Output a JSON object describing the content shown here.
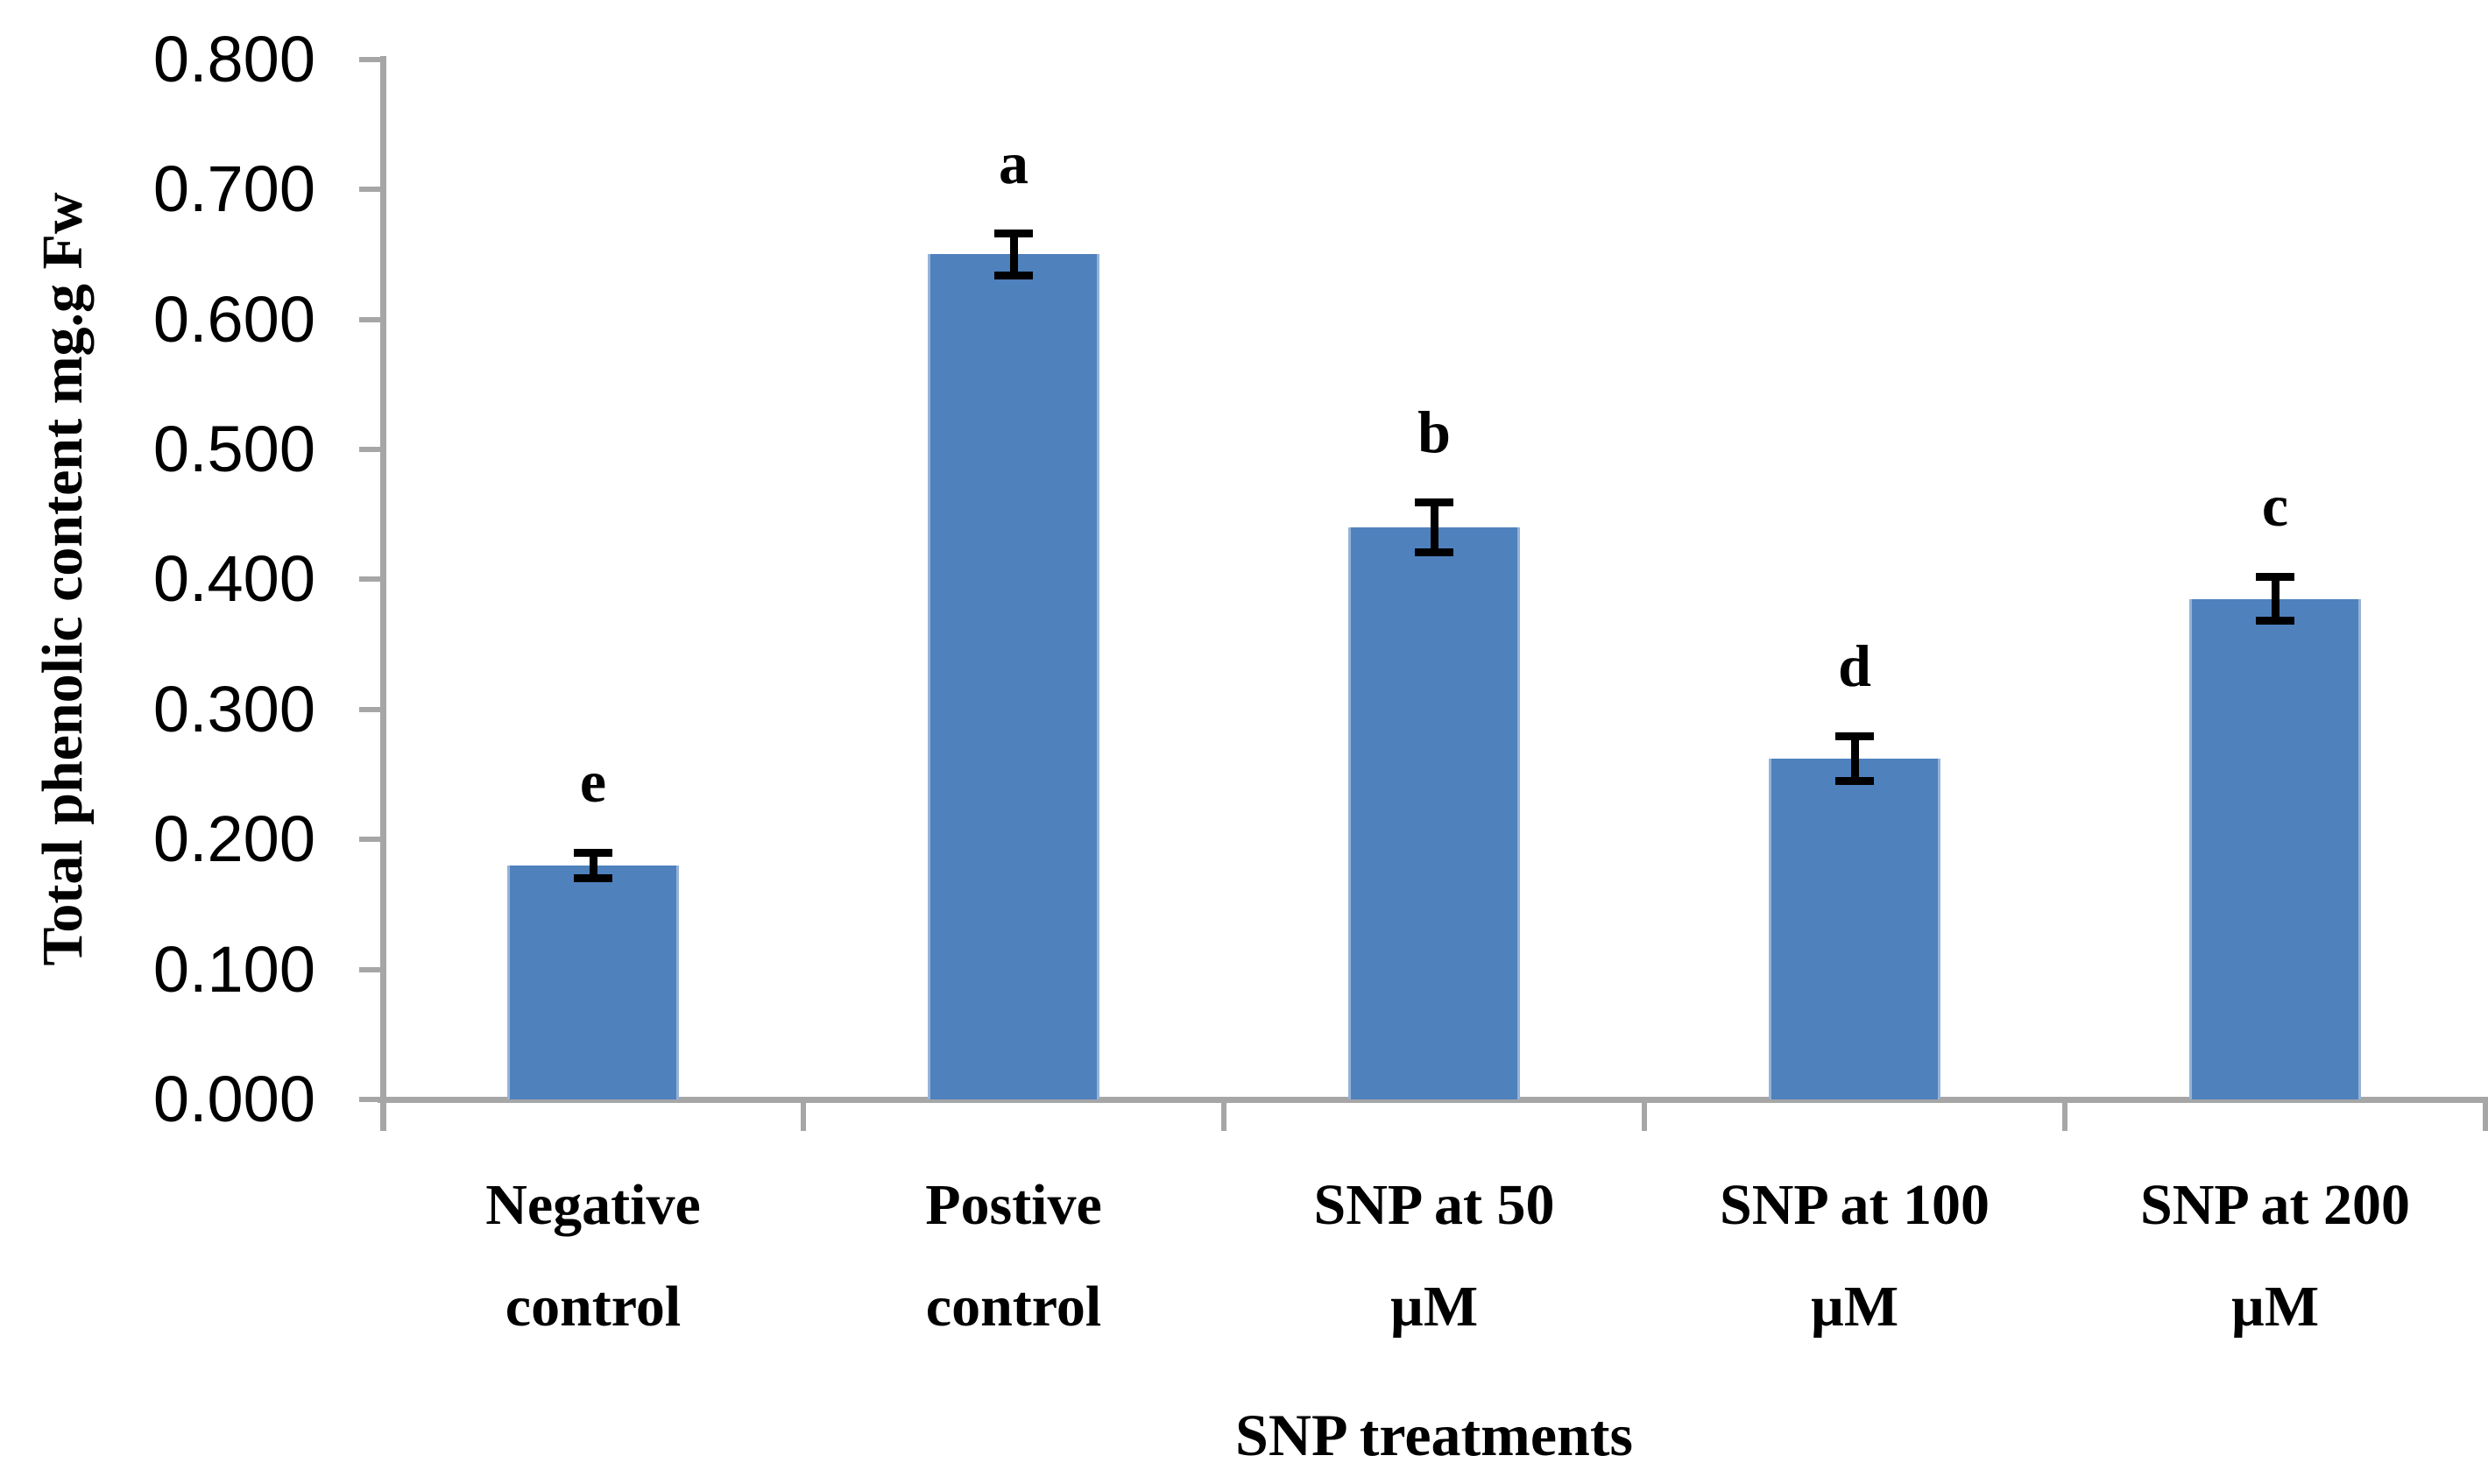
{
  "chart_data": {
    "type": "bar",
    "title": "",
    "xlabel": "SNP treatments",
    "ylabel": "Total phenolic content mg.g Fw",
    "categories": [
      "Negative control",
      "Postive control",
      "SNP at 50 µM",
      "SNP at 100 µM",
      "SNP at 200 µM"
    ],
    "category_label_lines": [
      [
        "Negative",
        "control"
      ],
      [
        "Postive",
        "control"
      ],
      [
        "SNP at 50",
        "µM"
      ],
      [
        "SNP at 100",
        "µM"
      ],
      [
        "SNP at 200",
        "µM"
      ]
    ],
    "values": [
      0.18,
      0.65,
      0.44,
      0.262,
      0.385
    ],
    "error_bars": [
      0.01,
      0.016,
      0.019,
      0.017,
      0.017
    ],
    "significance_letters": [
      "e",
      "a",
      "b",
      "d",
      "c"
    ],
    "ylim": [
      0.0,
      0.8
    ],
    "ytick_step": 0.1,
    "ytick_labels": [
      "0.000",
      "0.100",
      "0.200",
      "0.300",
      "0.400",
      "0.500",
      "0.600",
      "0.700",
      "0.800"
    ],
    "grid": false,
    "legend": null,
    "bar_color": "#4F81BD",
    "bar_edge_color": "#95B3D7",
    "axis_color": "#A6A6A6",
    "error_bar_color": "#000000",
    "text_color": "#000000"
  }
}
